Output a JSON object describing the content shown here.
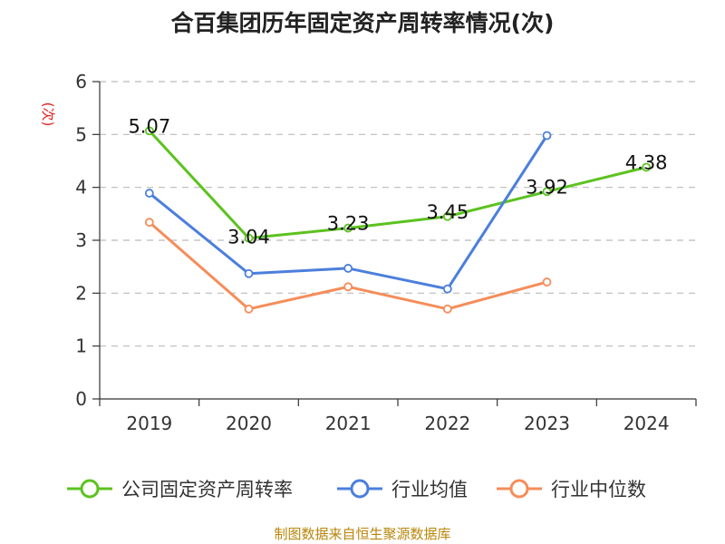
{
  "title": "合百集团历年固定资产周转率情况(次)",
  "source": "制图数据来自恒生聚源数据库",
  "colors": {
    "company": "#5cc21f",
    "industry_avg": "#4b7fdc",
    "industry_median": "#f58d5a",
    "ylabel": "#e02020",
    "grid": "#bbbbbb",
    "axis": "#333333",
    "source": "#b8860b"
  },
  "chart_data": {
    "type": "line",
    "title": "合百集团历年固定资产周转率情况(次)",
    "xlabel": "",
    "ylabel": "(次)",
    "categories": [
      "2019",
      "2020",
      "2021",
      "2022",
      "2023",
      "2024"
    ],
    "ylim": [
      0,
      6
    ],
    "yticks": [
      0,
      1,
      2,
      3,
      4,
      5,
      6
    ],
    "grid": true,
    "legend_position": "bottom",
    "series": [
      {
        "name": "公司固定资产周转率",
        "key": "company",
        "values": [
          5.07,
          3.04,
          3.23,
          3.45,
          3.92,
          4.38
        ],
        "labels": [
          "5.07",
          "3.04",
          "3.23",
          "3.45",
          "3.92",
          "4.38"
        ]
      },
      {
        "name": "行业均值",
        "key": "industry_avg",
        "values": [
          3.89,
          2.37,
          2.47,
          2.08,
          4.98,
          null
        ]
      },
      {
        "name": "行业中位数",
        "key": "industry_median",
        "values": [
          3.34,
          1.7,
          2.12,
          1.7,
          2.21,
          null
        ]
      }
    ]
  }
}
